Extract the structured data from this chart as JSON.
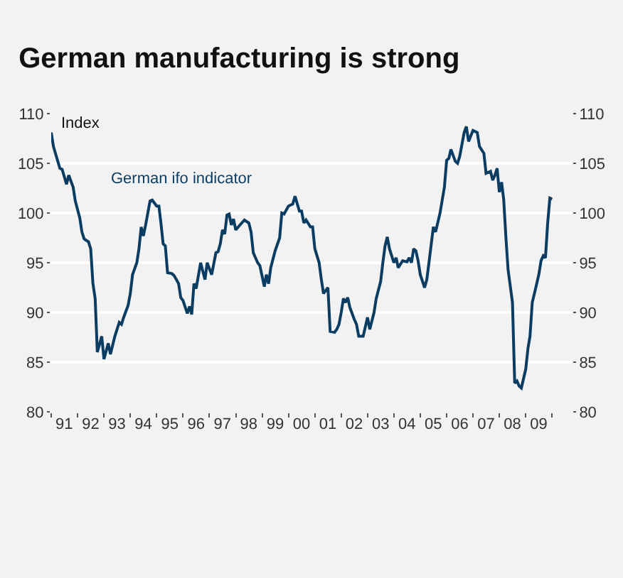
{
  "chart_data": {
    "type": "line",
    "title": "German manufacturing is strong",
    "ylabel": "Index",
    "x": [
      "1991-01",
      "1991-02",
      "1991-03",
      "1991-05",
      "1991-06",
      "1991-08",
      "1991-09",
      "1991-11",
      "1991-12",
      "1992-02",
      "1992-03",
      "1992-04",
      "1992-06",
      "1992-07",
      "1992-08",
      "1992-09",
      "1992-10",
      "1992-12",
      "1993-01",
      "1993-03",
      "1993-04",
      "1993-06",
      "1993-08",
      "1993-09",
      "1993-10",
      "1993-12",
      "1994-01",
      "1994-02",
      "1994-04",
      "1994-05",
      "1994-06",
      "1994-07",
      "1994-08",
      "1994-10",
      "1994-11",
      "1995-01",
      "1995-02",
      "1995-03",
      "1995-04",
      "1995-05",
      "1995-06",
      "1995-08",
      "1995-09",
      "1995-11",
      "1995-12",
      "1996-01",
      "1996-03",
      "1996-04",
      "1996-05",
      "1996-06",
      "1996-07",
      "1996-09",
      "1996-11",
      "1996-12",
      "1997-02",
      "1997-04",
      "1997-05",
      "1997-06",
      "1997-07",
      "1997-08",
      "1997-09",
      "1997-10",
      "1997-11",
      "1997-12",
      "1998-01",
      "1998-03",
      "1998-05",
      "1998-07",
      "1998-08",
      "1998-09",
      "1998-11",
      "1998-12",
      "1999-02",
      "1999-03",
      "1999-04",
      "1999-05",
      "1999-07",
      "1999-09",
      "1999-10",
      "1999-11",
      "2000-01",
      "2000-03",
      "2000-04",
      "2000-06",
      "2000-07",
      "2000-08",
      "2000-09",
      "2000-11",
      "2000-12",
      "2001-01",
      "2001-03",
      "2001-04",
      "2001-05",
      "2001-07",
      "2001-08",
      "2001-10",
      "2001-11",
      "2001-12",
      "2002-01",
      "2002-02",
      "2002-03",
      "2002-04",
      "2002-05",
      "2002-07",
      "2002-08",
      "2002-09",
      "2002-11",
      "2003-01",
      "2003-02",
      "2003-04",
      "2003-05",
      "2003-07",
      "2003-08",
      "2003-09",
      "2003-10",
      "2003-11",
      "2004-01",
      "2004-02",
      "2004-03",
      "2004-05",
      "2004-07",
      "2004-08",
      "2004-09",
      "2004-10",
      "2004-11",
      "2004-12",
      "2005-01",
      "2005-03",
      "2005-04",
      "2005-05",
      "2005-07",
      "2005-08",
      "2005-10",
      "2005-12",
      "2006-01",
      "2006-02",
      "2006-03",
      "2006-05",
      "2006-06",
      "2006-07",
      "2006-09",
      "2006-10",
      "2006-11",
      "2007-01",
      "2007-03",
      "2007-04",
      "2007-06",
      "2007-07",
      "2007-09",
      "2007-10",
      "2007-11",
      "2007-12",
      "2008-01",
      "2008-02",
      "2008-03",
      "2008-04",
      "2008-05",
      "2008-07",
      "2008-08",
      "2008-09",
      "2008-10",
      "2008-11",
      "2009-01",
      "2009-02",
      "2009-03",
      "2009-04",
      "2009-05",
      "2009-07",
      "2009-08",
      "2009-09",
      "2009-10",
      "2009-11",
      "2009-12",
      "2010-01"
    ],
    "series": [
      {
        "name": "German ifo indicator",
        "color": "#0b3d63",
        "values": [
          108.1,
          106.7,
          106.0,
          104.5,
          104.4,
          102.9,
          103.8,
          102.6,
          101.2,
          99.5,
          98.1,
          97.4,
          97.1,
          96.4,
          92.9,
          91.4,
          86.0,
          87.6,
          85.3,
          86.9,
          85.8,
          87.6,
          89.0,
          88.8,
          89.5,
          90.7,
          91.9,
          93.8,
          95.0,
          96.4,
          98.6,
          97.7,
          98.8,
          101.2,
          101.3,
          100.7,
          100.7,
          99.0,
          96.9,
          96.7,
          94.0,
          93.9,
          93.7,
          92.9,
          91.5,
          91.2,
          89.9,
          90.6,
          89.8,
          92.9,
          92.4,
          95.0,
          93.3,
          95.0,
          93.8,
          96.0,
          96.1,
          96.9,
          98.3,
          97.9,
          99.8,
          99.9,
          98.8,
          99.4,
          98.3,
          98.8,
          99.3,
          99.0,
          98.1,
          96.0,
          95.0,
          94.7,
          92.6,
          93.8,
          92.9,
          94.5,
          96.2,
          97.5,
          100.0,
          99.9,
          100.7,
          100.9,
          101.7,
          100.2,
          100.2,
          99.0,
          99.3,
          98.6,
          98.6,
          96.4,
          95.0,
          93.3,
          91.9,
          92.5,
          88.1,
          88.0,
          88.3,
          88.8,
          90.0,
          91.4,
          91.0,
          91.5,
          90.5,
          89.3,
          88.8,
          87.6,
          87.6,
          89.5,
          88.3,
          90.0,
          91.4,
          93.1,
          95.0,
          96.7,
          97.6,
          96.4,
          95.0,
          95.5,
          94.5,
          95.2,
          95.1,
          95.5,
          95.0,
          96.4,
          96.2,
          95.2,
          93.8,
          92.5,
          93.3,
          95.0,
          98.6,
          98.1,
          100.0,
          102.6,
          105.3,
          105.5,
          106.4,
          105.2,
          105.0,
          105.7,
          108.1,
          108.7,
          107.2,
          108.3,
          108.1,
          106.7,
          106.0,
          104.0,
          104.2,
          103.3,
          103.8,
          104.5,
          102.1,
          103.1,
          101.4,
          97.6,
          94.3,
          91.0,
          82.9,
          83.1,
          82.6,
          82.4,
          84.3,
          86.4,
          87.6,
          91.0,
          91.9,
          93.8,
          95.2,
          95.7,
          95.5,
          99.0,
          101.5,
          101.4
        ]
      }
    ],
    "xlim": [
      "1991-01",
      "2010-10"
    ],
    "xticks": [
      {
        "value": "1991",
        "label": null
      },
      {
        "value": "1991-07",
        "label": "91"
      },
      {
        "value": "1992",
        "label": null
      },
      {
        "value": "1992-07",
        "label": "92"
      },
      {
        "value": "1993",
        "label": null
      },
      {
        "value": "1993-07",
        "label": "93"
      },
      {
        "value": "1994",
        "label": null
      },
      {
        "value": "1994-07",
        "label": "94"
      },
      {
        "value": "1995",
        "label": null
      },
      {
        "value": "1995-07",
        "label": "95"
      },
      {
        "value": "1996",
        "label": null
      },
      {
        "value": "1996-07",
        "label": "96"
      },
      {
        "value": "1997",
        "label": null
      },
      {
        "value": "1997-07",
        "label": "97"
      },
      {
        "value": "1998",
        "label": null
      },
      {
        "value": "1998-07",
        "label": "98"
      },
      {
        "value": "1999",
        "label": null
      },
      {
        "value": "1999-07",
        "label": "99"
      },
      {
        "value": "2000",
        "label": null
      },
      {
        "value": "2000-07",
        "label": "00"
      },
      {
        "value": "2001",
        "label": null
      },
      {
        "value": "2001-07",
        "label": "01"
      },
      {
        "value": "2002",
        "label": null
      },
      {
        "value": "2002-07",
        "label": "02"
      },
      {
        "value": "2003",
        "label": null
      },
      {
        "value": "2003-07",
        "label": "03"
      },
      {
        "value": "2004",
        "label": null
      },
      {
        "value": "2004-07",
        "label": "04"
      },
      {
        "value": "2005",
        "label": null
      },
      {
        "value": "2005-07",
        "label": "05"
      },
      {
        "value": "2006",
        "label": null
      },
      {
        "value": "2006-07",
        "label": "06"
      },
      {
        "value": "2007",
        "label": null
      },
      {
        "value": "2007-07",
        "label": "07"
      },
      {
        "value": "2008",
        "label": null
      },
      {
        "value": "2008-07",
        "label": "08"
      },
      {
        "value": "2009",
        "label": null
      },
      {
        "value": "2009-07",
        "label": "09"
      },
      {
        "value": "2010",
        "label": null
      }
    ],
    "ylim": [
      80,
      110
    ],
    "yticks": [
      80,
      85,
      90,
      95,
      100,
      105,
      110
    ],
    "y2lim": [
      80,
      110
    ],
    "y2ticks": [
      80,
      85,
      90,
      95,
      100,
      105,
      110
    ],
    "grid": "y",
    "legend": false,
    "line_style": "solid",
    "marker": "none"
  }
}
